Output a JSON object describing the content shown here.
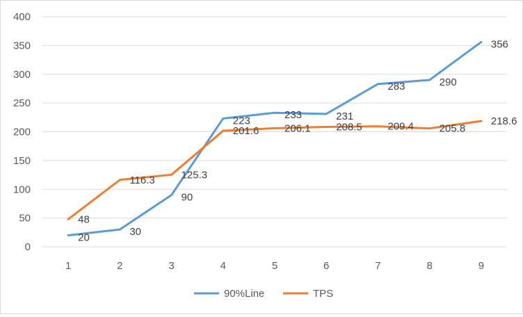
{
  "chart_data": {
    "type": "line",
    "categories": [
      "1",
      "2",
      "3",
      "4",
      "5",
      "6",
      "7",
      "8",
      "9"
    ],
    "series": [
      {
        "name": "90%Line",
        "color": "#5b9bd5",
        "values": [
          20,
          30,
          90,
          223,
          233,
          231,
          283,
          290,
          356
        ],
        "labels": [
          "20",
          "30",
          "90",
          "223",
          "233",
          "231",
          "283",
          "290",
          "356"
        ]
      },
      {
        "name": "TPS",
        "color": "#ed7d31",
        "values": [
          48,
          116.3,
          125.3,
          201.6,
          206.1,
          208.5,
          209.4,
          205.8,
          218.6
        ],
        "labels": [
          "48",
          "116.3",
          "125.3",
          "201.6",
          "206.1",
          "208.5",
          "209.4",
          "205.8",
          "218.6"
        ]
      }
    ],
    "ylim": [
      0,
      400
    ],
    "yticks": [
      "0",
      "50",
      "100",
      "150",
      "200",
      "250",
      "300",
      "350",
      "400"
    ],
    "grid": true,
    "legend_position": "bottom",
    "title": "",
    "xlabel": "",
    "ylabel": ""
  }
}
